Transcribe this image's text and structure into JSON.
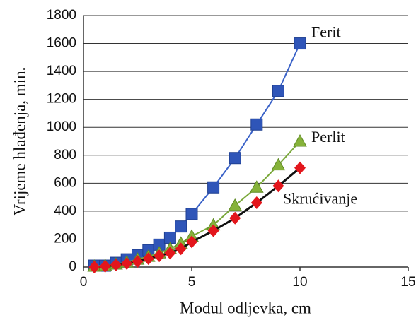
{
  "chart_data": {
    "type": "line",
    "x_label": "Modul odljevka, cm",
    "y_label": "Vrijeme hlađenja, min.",
    "x": [
      0.5,
      1,
      1.5,
      2,
      2.5,
      3,
      3.5,
      4,
      4.5,
      5,
      6,
      7,
      8,
      9,
      10
    ],
    "series": [
      {
        "name": "Ferit",
        "marker": "square",
        "color": "#2f55b8",
        "line_color": "#3a62c8",
        "values": [
          10,
          10,
          30,
          55,
          85,
          120,
          160,
          210,
          290,
          380,
          570,
          780,
          1020,
          1260,
          1600
        ]
      },
      {
        "name": "Perlit",
        "marker": "triangle",
        "color": "#86b23a",
        "line_color": "#7aa83a",
        "values": [
          5,
          10,
          20,
          35,
          55,
          75,
          100,
          130,
          170,
          220,
          300,
          440,
          570,
          730,
          900
        ]
      },
      {
        "name": "Skrućivanje",
        "marker": "diamond",
        "color": "#e3161c",
        "line_color": "#111111",
        "values": [
          0,
          5,
          15,
          25,
          40,
          60,
          80,
          100,
          130,
          180,
          260,
          350,
          460,
          580,
          710
        ]
      }
    ],
    "xlim": [
      0,
      15
    ],
    "xticks": [
      0,
      5,
      10,
      15
    ],
    "ylim": [
      0,
      1800
    ],
    "yticks": [
      0,
      200,
      400,
      600,
      800,
      1000,
      1200,
      1400,
      1600,
      1800
    ],
    "grid": true
  }
}
